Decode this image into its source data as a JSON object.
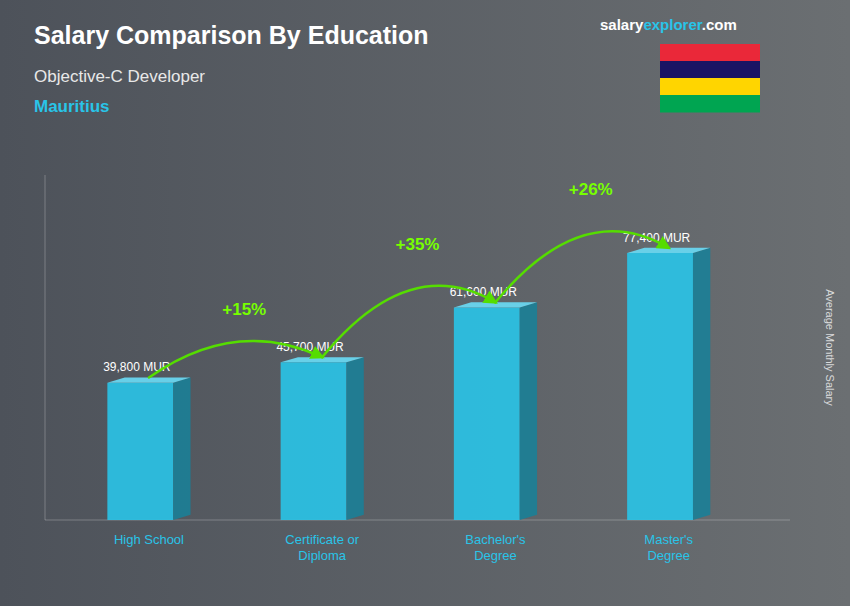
{
  "chart_data": {
    "type": "bar",
    "title": "Salary Comparison By Education",
    "subtitle": [
      "Objective-C Developer",
      "Mauritius"
    ],
    "ylabel": "Average Monthly Salary",
    "categories": [
      "High School",
      "Certificate or\nDiploma",
      "Bachelor's\nDegree",
      "Master's\nDegree"
    ],
    "values": [
      39800,
      45700,
      61600,
      77400
    ],
    "value_labels": [
      "39,800 MUR",
      "45,700 MUR",
      "61,600 MUR",
      "77,400 MUR"
    ],
    "data_labels": true,
    "color": "#29c4e8",
    "ylim": [
      0,
      100000
    ],
    "yticks": [],
    "grid": false,
    "tick_labels": "x",
    "annotations": [
      "+15%",
      "+35%",
      "+26%"
    ],
    "brand": [
      "salary",
      "explorer",
      ".com"
    ],
    "flag_colors": [
      "#EA2839",
      "#1A1464",
      "#FFD500",
      "#00A551"
    ]
  }
}
